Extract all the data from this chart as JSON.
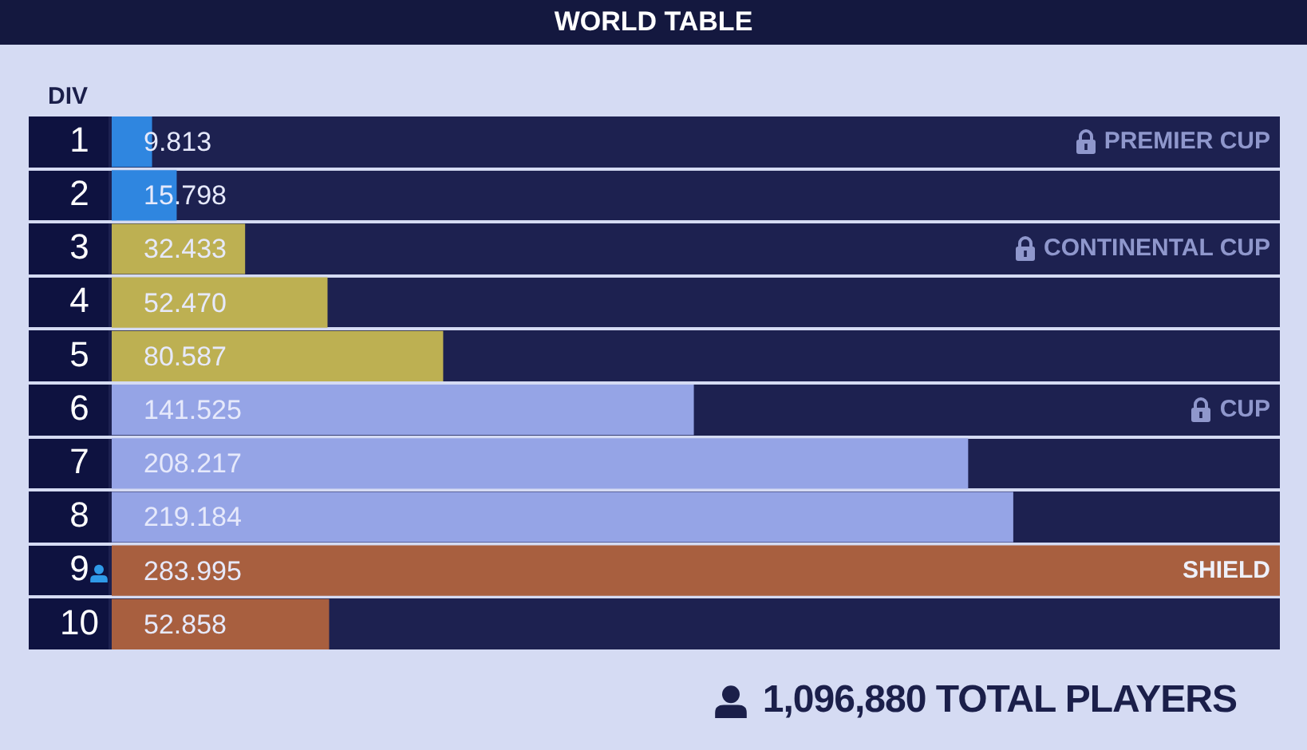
{
  "chart_data": {
    "type": "bar",
    "orientation": "horizontal",
    "title": "WORLD TABLE",
    "ylabel": "DIV",
    "categories": [
      "1",
      "2",
      "3",
      "4",
      "5",
      "6",
      "7",
      "8",
      "9",
      "10"
    ],
    "values": [
      9.813,
      15.798,
      32.433,
      52.47,
      80.587,
      141.525,
      208.217,
      219.184,
      283.995,
      52.858
    ],
    "colors": [
      "#2f86e0",
      "#2f86e0",
      "#bdb052",
      "#bdb052",
      "#bdb052",
      "#95a4e6",
      "#95a4e6",
      "#95a4e6",
      "#a85f3f",
      "#a85f3f"
    ],
    "value_labels": [
      "9.813",
      "15.798",
      "32.433",
      "52.470",
      "80.587",
      "141.525",
      "208.217",
      "219.184",
      "283.995",
      "52.858"
    ],
    "tick_labels": "y",
    "annotations": [
      "PREMIER CUP",
      "CONTINENTAL CUP",
      "CUP",
      "SHIELD",
      "1,096,880 TOTAL PLAYERS"
    ]
  }
}
